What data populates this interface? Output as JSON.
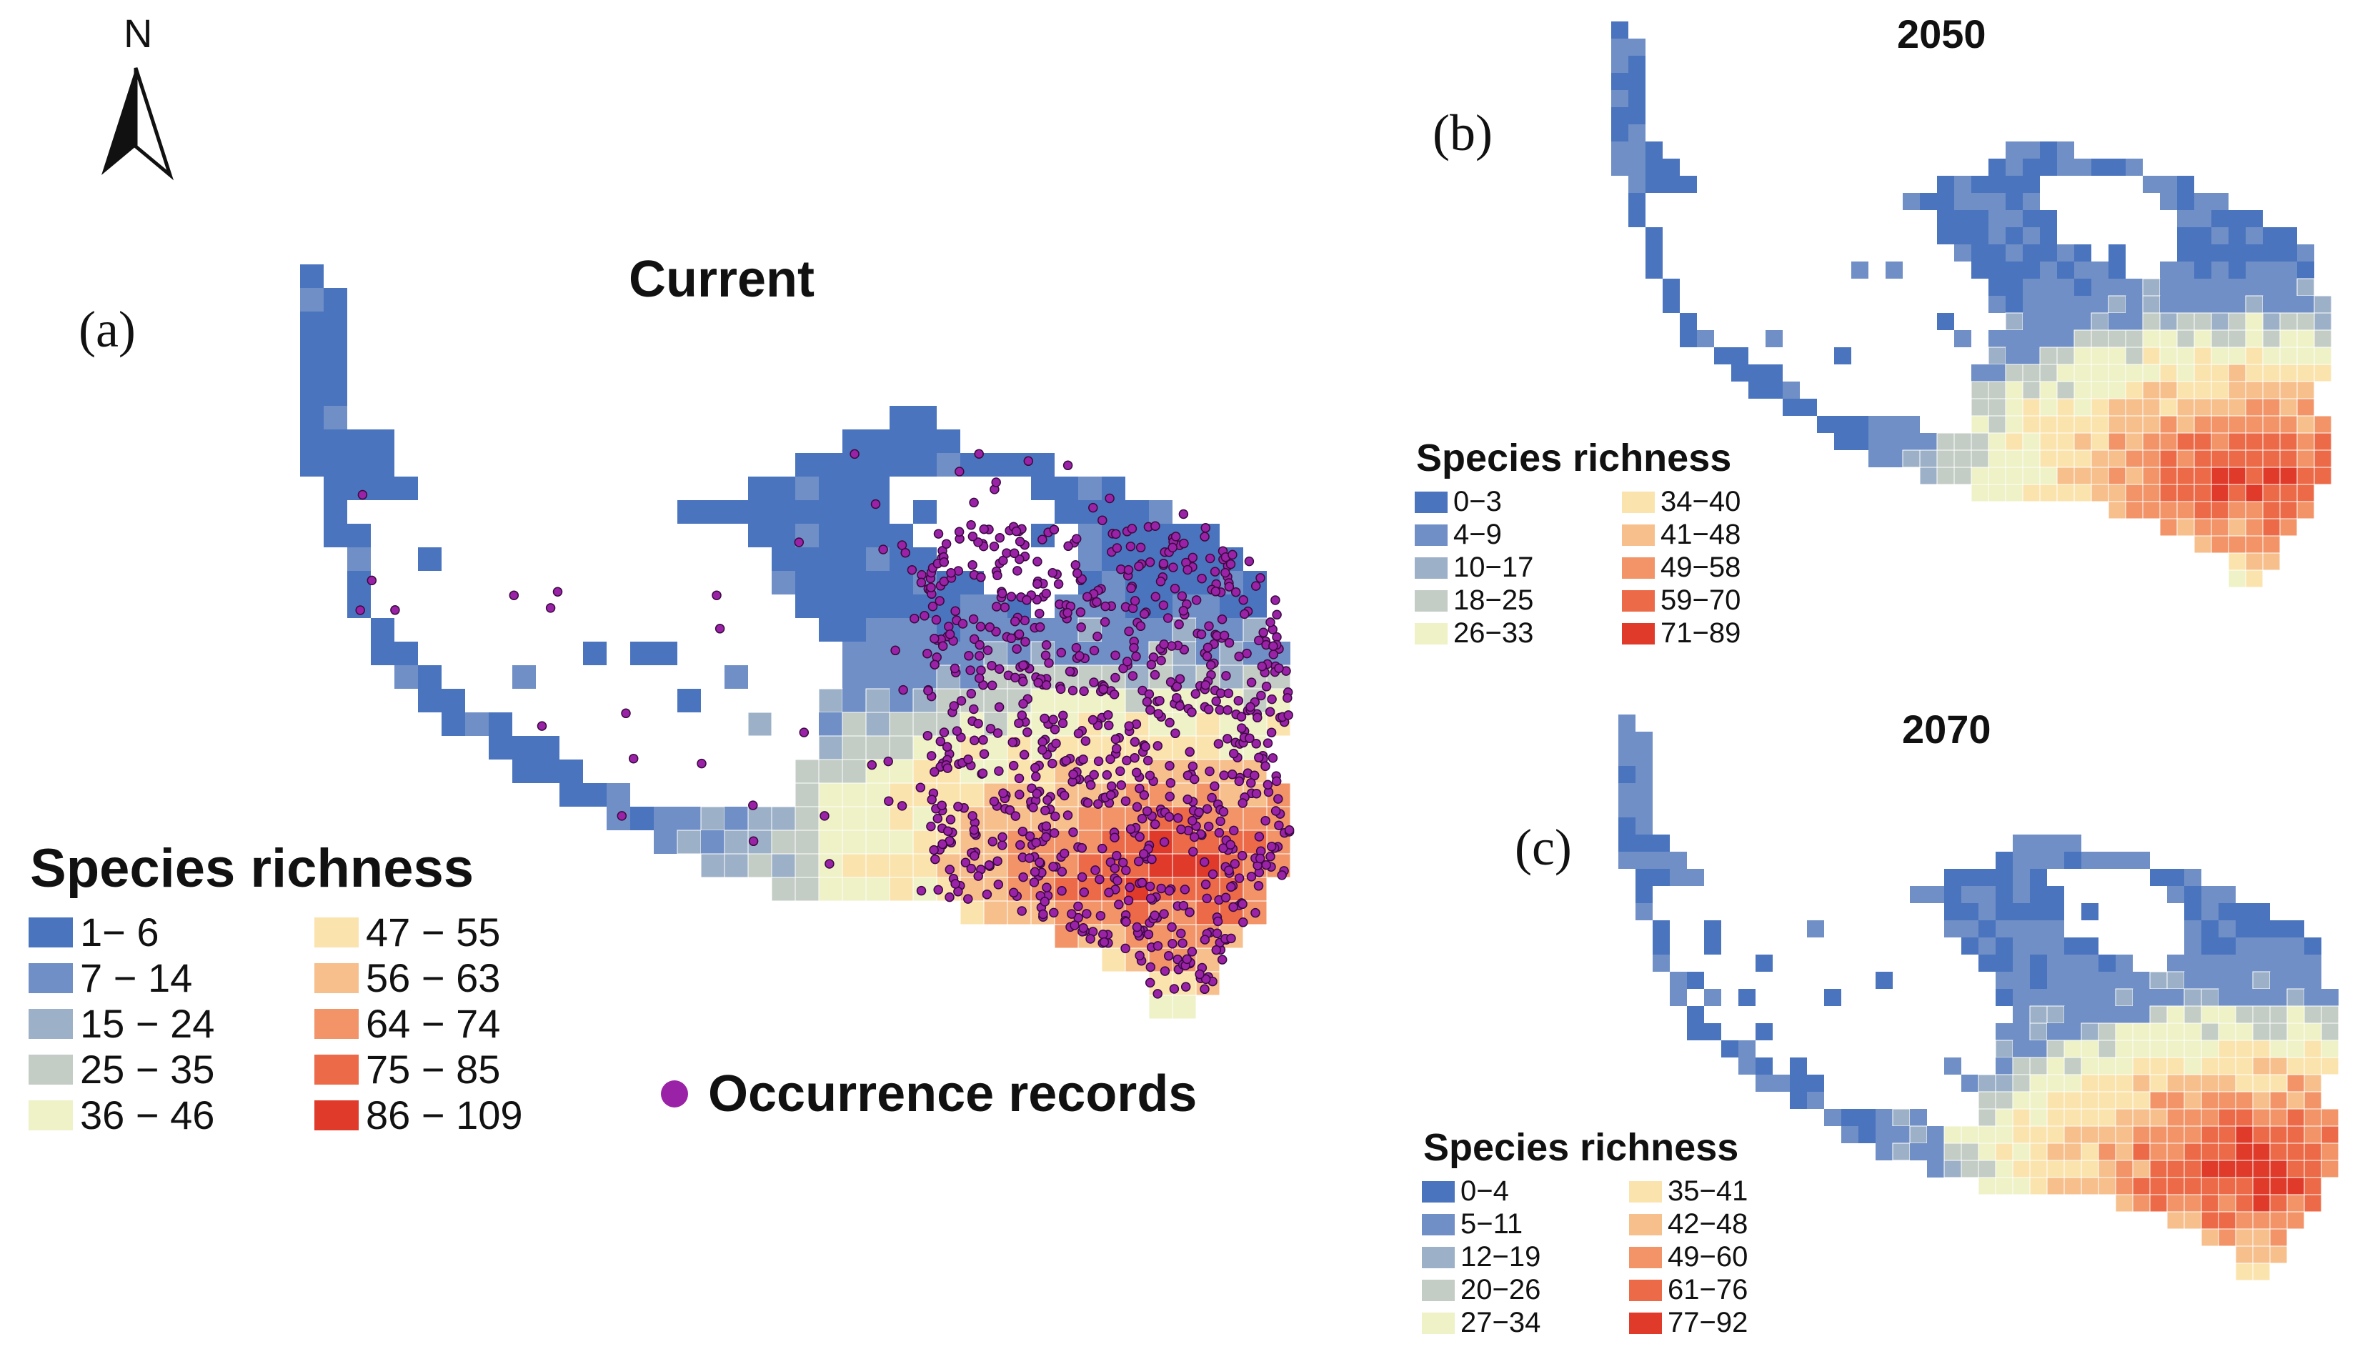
{
  "north_arrow": {
    "label": "N"
  },
  "panels": [
    {
      "letter": "(a)",
      "title": "Current",
      "legend": {
        "title": "Species richness",
        "classes": [
          {
            "label": "1− 6",
            "color": "#4a74be"
          },
          {
            "label": "7 − 14",
            "color": "#6f8fc6"
          },
          {
            "label": "15 − 24",
            "color": "#9cb0c8"
          },
          {
            "label": "25 − 35",
            "color": "#c3ccc5"
          },
          {
            "label": "36 − 46",
            "color": "#eef2c6"
          },
          {
            "label": "47 − 55",
            "color": "#fbe3ad"
          },
          {
            "label": "56 − 63",
            "color": "#f7bf8c"
          },
          {
            "label": "64 − 74",
            "color": "#f29468"
          },
          {
            "label": "75 − 85",
            "color": "#ec6a47"
          },
          {
            "label": "86 − 109",
            "color": "#e03a2a"
          }
        ]
      },
      "occurrence_label": "Occurrence records",
      "occurrence_color": "#9a22a6"
    },
    {
      "letter": "(b)",
      "title": "2050",
      "legend": {
        "title": "Species richness",
        "classes": [
          {
            "label": "0−3",
            "color": "#4a74be"
          },
          {
            "label": "4−9",
            "color": "#6f8fc6"
          },
          {
            "label": "10−17",
            "color": "#9cb0c8"
          },
          {
            "label": "18−25",
            "color": "#c3ccc5"
          },
          {
            "label": "26−33",
            "color": "#eef2c6"
          },
          {
            "label": "34−40",
            "color": "#fbe3ad"
          },
          {
            "label": "41−48",
            "color": "#f7bf8c"
          },
          {
            "label": "49−58",
            "color": "#f29468"
          },
          {
            "label": "59−70",
            "color": "#ec6a47"
          },
          {
            "label": "71−89",
            "color": "#e03a2a"
          }
        ]
      }
    },
    {
      "letter": "(c)",
      "title": "2070",
      "legend": {
        "title": "Species richness",
        "classes": [
          {
            "label": "0−4",
            "color": "#4a74be"
          },
          {
            "label": "5−11",
            "color": "#6f8fc6"
          },
          {
            "label": "12−19",
            "color": "#9cb0c8"
          },
          {
            "label": "20−26",
            "color": "#c3ccc5"
          },
          {
            "label": "27−34",
            "color": "#eef2c6"
          },
          {
            "label": "35−41",
            "color": "#fbe3ad"
          },
          {
            "label": "42−48",
            "color": "#f7bf8c"
          },
          {
            "label": "49−60",
            "color": "#f29468"
          },
          {
            "label": "61−76",
            "color": "#ec6a47"
          },
          {
            "label": "77−92",
            "color": "#e03a2a"
          }
        ]
      }
    }
  ]
}
